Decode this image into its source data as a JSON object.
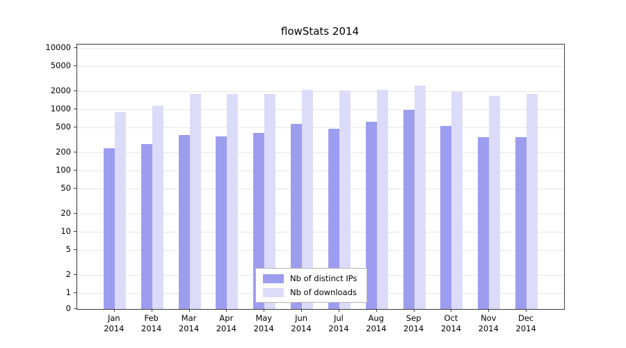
{
  "chart_data": {
    "type": "bar",
    "title": "flowStats 2014",
    "months": [
      "Jan",
      "Feb",
      "Mar",
      "Apr",
      "May",
      "Jun",
      "Jul",
      "Aug",
      "Sep",
      "Oct",
      "Nov",
      "Dec"
    ],
    "year": "2014",
    "categories": [
      "Jan 2014",
      "Feb 2014",
      "Mar 2014",
      "Apr 2014",
      "May 2014",
      "Jun 2014",
      "Jul 2014",
      "Aug 2014",
      "Sep 2014",
      "Oct 2014",
      "Nov 2014",
      "Dec 2014"
    ],
    "series": [
      {
        "name": "Nb of distinct IPs",
        "color": "#9d9df0",
        "values": [
          230,
          270,
          380,
          360,
          410,
          570,
          480,
          630,
          970,
          540,
          355,
          350
        ]
      },
      {
        "name": "Nb of downloads",
        "color": "#dcdcfa",
        "values": [
          900,
          1150,
          1780,
          1760,
          1800,
          2060,
          2010,
          2060,
          2450,
          1960,
          1650,
          1760
        ]
      }
    ],
    "yscale": "symlog",
    "yticks": [
      10000,
      5000,
      2000,
      1000,
      500,
      200,
      100,
      50,
      20,
      10,
      5,
      2,
      1,
      0
    ],
    "ylim": [
      0,
      10000
    ],
    "xlabel": "",
    "ylabel": "",
    "grid": true,
    "legend_position": "lower center"
  }
}
